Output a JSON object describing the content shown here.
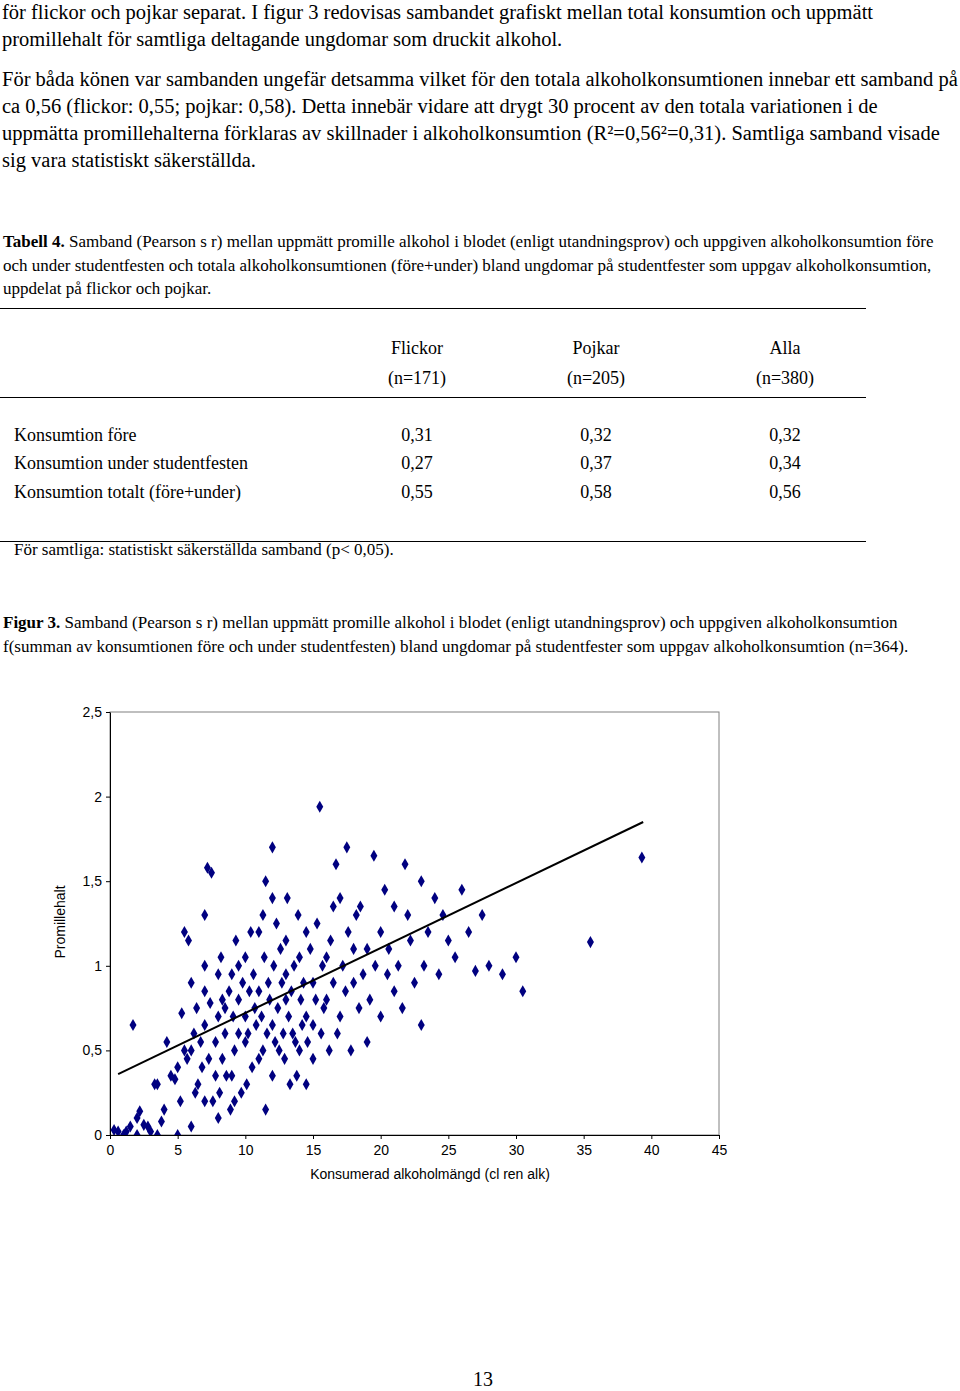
{
  "paragraphs": [
    "för flickor och pojkar separat. I figur 3 redovisas sambandet grafiskt mellan total konsumtion och uppmätt promillehalt för samtliga deltagande ungdomar som druckit alkohol.",
    "För båda könen var sambanden ungefär detsamma vilket för den totala alkoholkonsumtionen innebar ett samband på ca 0,56 (flickor: 0,55; pojkar: 0,58). Detta innebär vidare att drygt 30 procent av den totala variationen i de uppmätta promillehalterna förklaras av skillnader i alkoholkonsumtion (R²=0,56²=0,31). Samtliga samband visade sig vara statistiskt säkerställda."
  ],
  "table_caption": {
    "label": "Tabell 4.",
    "text": "Samband (Pearson s r) mellan uppmätt promille alkohol i blodet (enligt utandningsprov) och uppgiven alkoholkonsumtion före och under studentfesten och totala alkoholkonsumtionen (före+under) bland ungdomar på studentfester som uppgav alkoholkonsumtion, uppdelat på flickor och pojkar."
  },
  "table": {
    "columns": [
      {
        "name": "Flickor",
        "n": "(n=171)"
      },
      {
        "name": "Pojkar",
        "n": "(n=205)"
      },
      {
        "name": "Alla",
        "n": "(n=380)"
      }
    ],
    "rows": [
      {
        "label": "Konsumtion före",
        "values": [
          "0,31",
          "0,32",
          "0,32"
        ]
      },
      {
        "label": "Konsumtion under studentfesten",
        "values": [
          "0,27",
          "0,37",
          "0,34"
        ]
      },
      {
        "label": "Konsumtion totalt (före+under)",
        "values": [
          "0,55",
          "0,58",
          "0,56"
        ]
      }
    ],
    "note": "För samtliga: statistiskt säkerställda samband (p< 0,05)."
  },
  "figure_caption": {
    "label": "Figur 3.",
    "text": "Samband (Pearson s r) mellan uppmätt promille alkohol i blodet (enligt utandningsprov) och uppgiven alkoholkonsumtion f(summan av konsumtionen före och under studentfesten) bland ungdomar på studentfester som uppgav alkoholkonsumtion (n=364)."
  },
  "chart_data": {
    "type": "scatter",
    "x_label": "Konsumerad alkoholmängd (cl ren alk)",
    "y_label": "Promillehalt",
    "xlim": [
      0,
      45
    ],
    "xticks": [
      0,
      5,
      10,
      15,
      20,
      25,
      30,
      35,
      40,
      45
    ],
    "ylim": [
      0,
      2.5
    ],
    "yticks": [
      0,
      {
        "value": 0.5,
        "label": "0,5"
      },
      1,
      {
        "value": 1.5,
        "label": "1,5"
      },
      2,
      {
        "value": 2.5,
        "label": "2,5"
      }
    ],
    "grid": false,
    "series": [
      {
        "type": "scatter",
        "color": "#000080",
        "marker": "diamond",
        "x": [
          0.3,
          0.6,
          1,
          1.5,
          2,
          2.5,
          2,
          3,
          2.2,
          3.3,
          3.5,
          1.7,
          5,
          4.5,
          5,
          5.5,
          6,
          6.2,
          5.7,
          6.5,
          7,
          7,
          7,
          7,
          7.2,
          7.5,
          8,
          8,
          8.3,
          8.5,
          8.3,
          9,
          9,
          9.5,
          9.5,
          10,
          10,
          10.3,
          10.5,
          10.7,
          11,
          11.3,
          11.5,
          11.3,
          12,
          12,
          12,
          12.5,
          12.7,
          13,
          13,
          13.3,
          13.5,
          14,
          14,
          14.5,
          14.5,
          15,
          15,
          15.5,
          15.7,
          16,
          16.3,
          16.5,
          17,
          17,
          17.5,
          18,
          18,
          18.5,
          19,
          19,
          19.5,
          20,
          20.5,
          21,
          21,
          22,
          22.5,
          23,
          23.5,
          23,
          24,
          25,
          25.5,
          26,
          27,
          28,
          30,
          30.5,
          35.5,
          39.3,
          4.8,
          5.2,
          5.3,
          5.5,
          5.8,
          6,
          6.3,
          6.4,
          6.7,
          6.8,
          7,
          7.3,
          7.4,
          7.6,
          7.8,
          8,
          8.1,
          8.2,
          8.5,
          8.6,
          8.8,
          8.9,
          9.1,
          9.2,
          9.3,
          9.5,
          9.7,
          9.8,
          10,
          10.1,
          10.2,
          10.4,
          10.6,
          10.8,
          11,
          11,
          11.2,
          11.4,
          11.6,
          11.7,
          11.8,
          12,
          12.1,
          12.2,
          12.3,
          12.4,
          12.6,
          12.8,
          12.9,
          13,
          13.1,
          13.2,
          13.4,
          13.6,
          13.7,
          13.8,
          13.9,
          14.1,
          14.2,
          14.3,
          14.6,
          14.8,
          15,
          15.2,
          15.3,
          15.6,
          15.8,
          16,
          16.2,
          16.5,
          16.7,
          16.8,
          17.2,
          17.4,
          17.6,
          17.8,
          18.2,
          18.4,
          18.7,
          19.2,
          19.6,
          20,
          20.3,
          20.6,
          21.3,
          21.6,
          21.8,
          22.2,
          23.2,
          24.3,
          24.6,
          26.5,
          27.5,
          29,
          4,
          3.5,
          4.2,
          1.2,
          2.8,
          3.8,
          6,
          7.8,
          9.2,
          11.5,
          14.5
        ],
        "values": [
          0.03,
          0.02,
          0,
          0.05,
          0.1,
          0.06,
          0,
          0.02,
          0.14,
          0.3,
          0,
          0.65,
          0,
          0.35,
          0.4,
          0.5,
          0.5,
          0.6,
          0.45,
          0.3,
          0.2,
          0.85,
          1,
          1.3,
          1.58,
          1.55,
          0.1,
          0.7,
          0.8,
          0.75,
          0.45,
          0.35,
          0.95,
          1,
          0.6,
          0.7,
          0.55,
          0.85,
          0.4,
          0.75,
          1.2,
          0.5,
          1.5,
          1.3,
          1.4,
          1.7,
          0.65,
          0.5,
          0.9,
          1.15,
          0.8,
          0.3,
          0.6,
          0.5,
          1.05,
          1.2,
          0.7,
          0.9,
          0.45,
          1.94,
          1,
          0.8,
          1.15,
          1.35,
          0.7,
          1.4,
          1.7,
          1.1,
          0.9,
          1.35,
          1.1,
          0.55,
          1.65,
          1.2,
          0.95,
          1.35,
          0.85,
          1.3,
          0.9,
          1.5,
          1.2,
          0.65,
          1.4,
          1.15,
          1.05,
          1.45,
          0.97,
          1,
          1.05,
          0.85,
          1.14,
          1.64,
          0.33,
          0.2,
          0.72,
          1.2,
          1.15,
          0.9,
          0.25,
          0.75,
          0.55,
          0.4,
          0.65,
          0.45,
          0.78,
          0.2,
          0.55,
          0.95,
          0.25,
          1.05,
          0.6,
          0.35,
          0.85,
          0.15,
          0.7,
          0.5,
          1.15,
          0.8,
          0.25,
          0.9,
          1.05,
          0.3,
          0.6,
          1.2,
          0.95,
          0.65,
          0.45,
          0.85,
          0.7,
          1.05,
          0.6,
          0.9,
          0.8,
          0.35,
          1,
          0.55,
          1.25,
          0.75,
          1.1,
          0.6,
          0.45,
          0.95,
          1.4,
          0.7,
          0.85,
          1,
          0.55,
          0.35,
          1.3,
          0.8,
          0.65,
          0.9,
          0.55,
          1.1,
          0.65,
          0.8,
          1.25,
          0.6,
          0.75,
          1.05,
          0.5,
          0.9,
          1.6,
          0.6,
          1,
          0.85,
          1.2,
          0.5,
          1.3,
          0.75,
          0.95,
          0.8,
          1,
          0.7,
          1.45,
          1.1,
          1,
          0.75,
          1.6,
          1.15,
          1,
          0.95,
          1.3,
          1.2,
          1.3,
          0.95,
          0.15,
          0.3,
          0.55,
          0.02,
          0.05,
          0.08,
          0.05,
          0.35,
          0.2,
          0.15,
          0.3
        ]
      },
      {
        "type": "line",
        "color": "#000000",
        "line_style": "solid",
        "x": [
          0.6,
          39.4
        ],
        "values": [
          0.36,
          1.85
        ]
      }
    ]
  },
  "page_number": "13"
}
